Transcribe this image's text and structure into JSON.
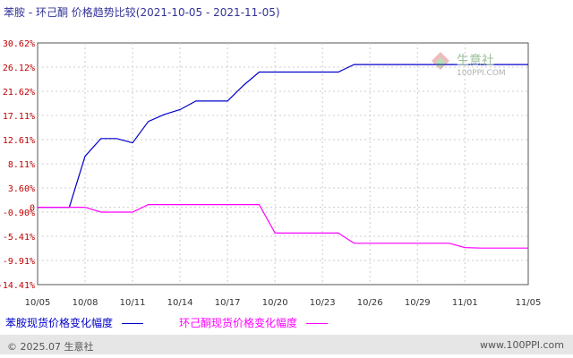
{
  "title": "苯胺 - 环己酮 价格趋势比较(2021-10-05 - 2021-11-05)",
  "watermark": {
    "name": "生意社",
    "url": "100PPI.COM"
  },
  "footer": {
    "left": "© 2025.07 生意社",
    "right": "www.100PPI.com"
  },
  "colors": {
    "series1": "#0000cc",
    "series2": "#ff00ff",
    "ytick": "#c00000",
    "grid": "#cccccc"
  },
  "chart_data": {
    "type": "line",
    "title": "苯胺 - 环己酮 价格趋势比较(2021-10-05 - 2021-11-05)",
    "xlabel": "",
    "ylabel": "",
    "ylim": [
      -14.41,
      30.62
    ],
    "grid": true,
    "legend_position": "bottom",
    "y_ticks": [
      "30.62%",
      "26.12%",
      "21.62%",
      "17.11%",
      "12.61%",
      "8.11%",
      "3.60%",
      "0",
      "-0.90%",
      "-5.41%",
      "-9.91%",
      "-14.41%"
    ],
    "y_tick_values": [
      30.62,
      26.12,
      21.62,
      17.11,
      12.61,
      8.11,
      3.6,
      0,
      -0.9,
      -5.41,
      -9.91,
      -14.41
    ],
    "x_ticks": [
      "10/05",
      "10/08",
      "10/11",
      "10/14",
      "10/17",
      "10/20",
      "10/23",
      "10/26",
      "10/29",
      "11/01",
      "11/05"
    ],
    "x_tick_dates": [
      "2021-10-05",
      "2021-10-08",
      "2021-10-11",
      "2021-10-14",
      "2021-10-17",
      "2021-10-20",
      "2021-10-23",
      "2021-10-26",
      "2021-10-29",
      "2021-11-01",
      "2021-11-05"
    ],
    "x_range": [
      "2021-10-05",
      "2021-11-05"
    ],
    "series": [
      {
        "name": "苯胺现货价格变化幅度",
        "color": "#0000cc",
        "points": [
          [
            "2021-10-05",
            0
          ],
          [
            "2021-10-06",
            0
          ],
          [
            "2021-10-07",
            0
          ],
          [
            "2021-10-08",
            9.5
          ],
          [
            "2021-10-09",
            12.8
          ],
          [
            "2021-10-10",
            12.8
          ],
          [
            "2021-10-11",
            12.0
          ],
          [
            "2021-10-12",
            16.0
          ],
          [
            "2021-10-13",
            17.3
          ],
          [
            "2021-10-14",
            18.2
          ],
          [
            "2021-10-15",
            19.8
          ],
          [
            "2021-10-16",
            19.8
          ],
          [
            "2021-10-17",
            19.8
          ],
          [
            "2021-10-18",
            22.7
          ],
          [
            "2021-10-19",
            25.2
          ],
          [
            "2021-10-20",
            25.2
          ],
          [
            "2021-10-21",
            25.2
          ],
          [
            "2021-10-22",
            25.2
          ],
          [
            "2021-10-23",
            25.2
          ],
          [
            "2021-10-24",
            25.2
          ],
          [
            "2021-10-25",
            26.6
          ],
          [
            "2021-10-26",
            26.6
          ],
          [
            "2021-10-27",
            26.6
          ],
          [
            "2021-10-28",
            26.6
          ],
          [
            "2021-10-29",
            26.6
          ],
          [
            "2021-10-30",
            26.6
          ],
          [
            "2021-10-31",
            26.6
          ],
          [
            "2021-11-01",
            26.6
          ],
          [
            "2021-11-02",
            26.6
          ],
          [
            "2021-11-03",
            26.6
          ],
          [
            "2021-11-04",
            26.6
          ],
          [
            "2021-11-05",
            26.6
          ]
        ]
      },
      {
        "name": "环己酮现货价格变化幅度",
        "color": "#ff00ff",
        "points": [
          [
            "2021-10-05",
            0
          ],
          [
            "2021-10-06",
            0
          ],
          [
            "2021-10-07",
            0
          ],
          [
            "2021-10-08",
            0
          ],
          [
            "2021-10-09",
            -0.9
          ],
          [
            "2021-10-10",
            -0.9
          ],
          [
            "2021-10-11",
            -0.9
          ],
          [
            "2021-10-12",
            0.5
          ],
          [
            "2021-10-13",
            0.5
          ],
          [
            "2021-10-14",
            0.5
          ],
          [
            "2021-10-15",
            0.5
          ],
          [
            "2021-10-16",
            0.5
          ],
          [
            "2021-10-17",
            0.5
          ],
          [
            "2021-10-18",
            0.5
          ],
          [
            "2021-10-19",
            0.5
          ],
          [
            "2021-10-20",
            -4.8
          ],
          [
            "2021-10-21",
            -4.8
          ],
          [
            "2021-10-22",
            -4.8
          ],
          [
            "2021-10-23",
            -4.8
          ],
          [
            "2021-10-24",
            -4.8
          ],
          [
            "2021-10-25",
            -6.7
          ],
          [
            "2021-10-26",
            -6.7
          ],
          [
            "2021-10-27",
            -6.7
          ],
          [
            "2021-10-28",
            -6.7
          ],
          [
            "2021-10-29",
            -6.7
          ],
          [
            "2021-10-30",
            -6.7
          ],
          [
            "2021-10-31",
            -6.7
          ],
          [
            "2021-11-01",
            -7.5
          ],
          [
            "2021-11-02",
            -7.6
          ],
          [
            "2021-11-03",
            -7.6
          ],
          [
            "2021-11-04",
            -7.6
          ],
          [
            "2021-11-05",
            -7.6
          ]
        ]
      }
    ]
  }
}
